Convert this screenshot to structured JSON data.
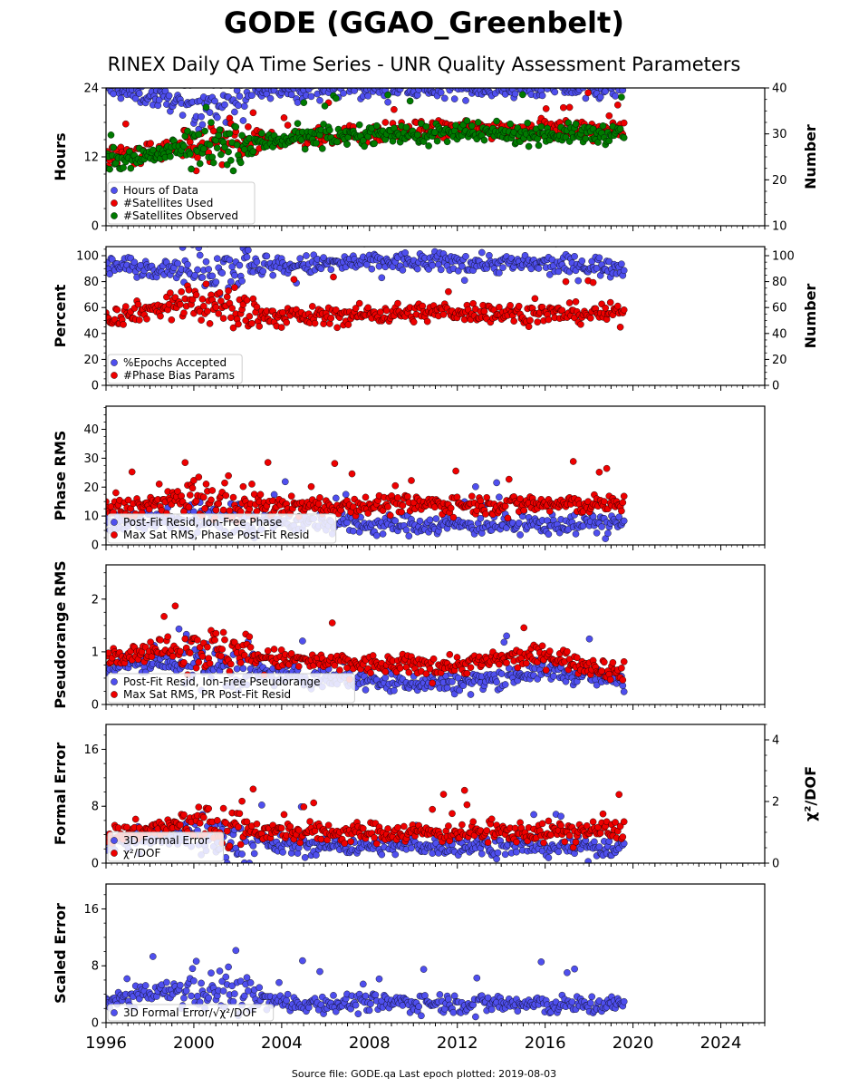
{
  "title": "GODE (GGAO_Greenbelt)",
  "subtitle": "RINEX Daily QA Time Series - UNR Quality Assessment Parameters",
  "footer": "Source file: GODE.qa Last epoch plotted: 2019-08-03",
  "colors": {
    "blue": "#4f4fee",
    "red": "#ee0000",
    "green": "#007a00"
  },
  "chart_data": [
    {
      "type": "scatter",
      "ylabel": "Hours",
      "y2label": "Number",
      "ylim": [
        0,
        24
      ],
      "y2lim": [
        10,
        40
      ],
      "yticks": [
        0,
        12,
        24
      ],
      "y2ticks": [
        10,
        20,
        30,
        40
      ],
      "xlim": [
        1996,
        2026
      ],
      "xticks": [
        1996,
        2000,
        2004,
        2008,
        2012,
        2016,
        2020,
        2024
      ],
      "x_data_range": [
        1996.0,
        2019.59
      ],
      "legend": "lower-left",
      "series": [
        {
          "name": "Hours of Data",
          "color": "#4f4fee",
          "axis": "left",
          "x": [
            1996,
            2000,
            2002,
            2004,
            2008,
            2012,
            2016,
            2019.59
          ],
          "y": [
            24,
            21,
            22,
            24,
            24,
            24,
            24,
            24
          ]
        },
        {
          "name": "#Satellites Used",
          "color": "#ee0000",
          "axis": "right",
          "x": [
            1996,
            2000,
            2002,
            2004,
            2008,
            2012,
            2016,
            2019.59
          ],
          "y": [
            25,
            27,
            28,
            29,
            30,
            31,
            31,
            31
          ]
        },
        {
          "name": "#Satellites Observed",
          "color": "#007a00",
          "axis": "right",
          "x": [
            1996,
            2000,
            2002,
            2004,
            2008,
            2012,
            2016,
            2019.59
          ],
          "y": [
            24,
            27,
            27,
            29,
            30,
            30,
            30,
            30
          ]
        }
      ]
    },
    {
      "type": "scatter",
      "ylabel": "Percent",
      "y2label": "Number",
      "ylim": [
        0,
        107
      ],
      "y2lim": [
        0,
        107
      ],
      "yticks": [
        0,
        20,
        40,
        60,
        80,
        100
      ],
      "y2ticks": [
        0,
        20,
        40,
        60,
        80,
        100
      ],
      "xlim": [
        1996,
        2026
      ],
      "x_data_range": [
        1996.0,
        2019.59
      ],
      "legend": "lower-left",
      "series": [
        {
          "name": "%Epochs Accepted",
          "color": "#4f4fee",
          "axis": "left",
          "x": [
            1996,
            2000,
            2004,
            2008,
            2012,
            2016,
            2019.59
          ],
          "y": [
            92,
            91,
            92,
            95,
            95,
            93,
            92
          ]
        },
        {
          "name": "#Phase Bias Params",
          "color": "#ee0000",
          "axis": "right",
          "x": [
            1996,
            2000,
            2004,
            2008,
            2012,
            2016,
            2019.59
          ],
          "y": [
            52,
            65,
            52,
            55,
            57,
            55,
            56
          ]
        }
      ]
    },
    {
      "type": "scatter",
      "ylabel": "Phase RMS",
      "ylim": [
        0,
        48
      ],
      "yticks": [
        0,
        10,
        20,
        30,
        40
      ],
      "xlim": [
        1996,
        2026
      ],
      "x_data_range": [
        1996.0,
        2019.59
      ],
      "legend": "lower-left",
      "series": [
        {
          "name": "Post-Fit Resid, Ion-Free Phase",
          "color": "#4f4fee",
          "x": [
            1996,
            2000,
            2004,
            2008,
            2012,
            2016,
            2019.59
          ],
          "y": [
            8,
            9,
            8,
            7,
            7,
            7,
            8
          ]
        },
        {
          "name": "Max Sat RMS, Phase Post-Fit Resid",
          "color": "#ee0000",
          "x": [
            1996,
            2000,
            2004,
            2008,
            2012,
            2016,
            2019.59
          ],
          "y": [
            12,
            16,
            13,
            14,
            14,
            14,
            14
          ]
        }
      ]
    },
    {
      "type": "scatter",
      "ylabel": "Pseudorange RMS",
      "ylim": [
        0,
        2.65
      ],
      "yticks": [
        0,
        1,
        2
      ],
      "xlim": [
        1996,
        2026
      ],
      "x_data_range": [
        1996.0,
        2019.59
      ],
      "legend": "lower-left",
      "series": [
        {
          "name": "Post-Fit Resid, Ion-Free Pseudorange",
          "color": "#4f4fee",
          "x": [
            1996,
            2000,
            2004,
            2008,
            2012,
            2016,
            2019.59
          ],
          "y": [
            0.75,
            0.8,
            0.55,
            0.45,
            0.4,
            0.65,
            0.45
          ]
        },
        {
          "name": "Max Sat RMS, PR Post-Fit Resid",
          "color": "#ee0000",
          "x": [
            1996,
            2000,
            2004,
            2008,
            2012,
            2016,
            2019.59
          ],
          "y": [
            0.95,
            1.1,
            0.85,
            0.75,
            0.75,
            0.95,
            0.6
          ]
        }
      ]
    },
    {
      "type": "scatter",
      "ylabel": "Formal Error",
      "y2label": "χ²/DOF",
      "ylim": [
        0,
        19.5
      ],
      "y2lim": [
        0,
        4.5
      ],
      "yticks": [
        0,
        8,
        16
      ],
      "y2ticks": [
        0,
        2,
        4
      ],
      "xlim": [
        1996,
        2026
      ],
      "x_data_range": [
        1996.0,
        2019.59
      ],
      "legend": "lower-left",
      "series": [
        {
          "name": "3D Formal Error",
          "color": "#4f4fee",
          "axis": "left",
          "x": [
            1996,
            2000,
            2004,
            2008,
            2012,
            2016,
            2019.59
          ],
          "y": [
            3,
            4,
            2.5,
            2.5,
            2.5,
            2.3,
            2.2
          ]
        },
        {
          "name": "χ²/DOF",
          "color": "#ee0000",
          "axis": "right",
          "x": [
            1996,
            2000,
            2004,
            2008,
            2012,
            2016,
            2019.59
          ],
          "y": [
            0.9,
            1.3,
            1.0,
            1.0,
            1.0,
            1.0,
            1.1
          ]
        }
      ]
    },
    {
      "type": "scatter",
      "ylabel": "Scaled Error",
      "ylim": [
        0,
        19.5
      ],
      "yticks": [
        0,
        8,
        16
      ],
      "xlim": [
        1996,
        2026
      ],
      "xticks": [
        1996,
        2000,
        2004,
        2008,
        2012,
        2016,
        2020,
        2024
      ],
      "x_data_range": [
        1996.0,
        2019.59
      ],
      "legend": "lower-left",
      "series": [
        {
          "name": "3D Formal Error/√χ²/DOF",
          "color": "#4f4fee",
          "x": [
            1996,
            2000,
            2002,
            2004,
            2008,
            2012,
            2016,
            2019.59
          ],
          "y": [
            3,
            5,
            4,
            2.8,
            2.8,
            2.8,
            2.5,
            2.5
          ]
        }
      ]
    }
  ]
}
